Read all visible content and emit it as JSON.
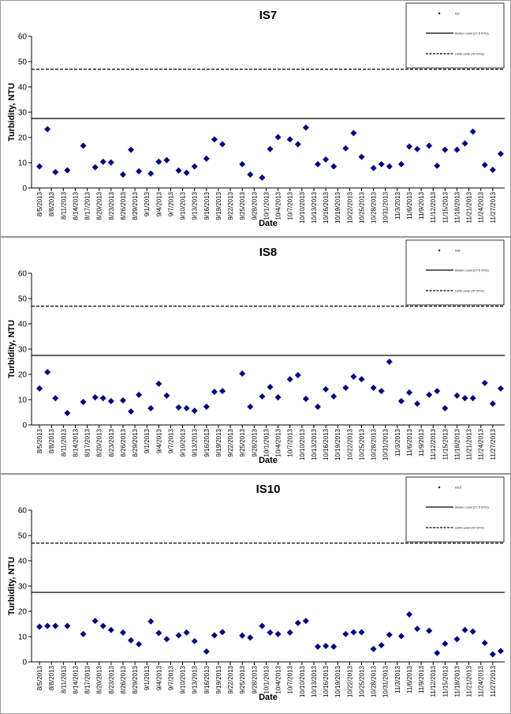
{
  "chart_data": [
    {
      "type": "scatter",
      "title": "IS7",
      "x_label": "Date",
      "y_label": "Turbidity, NTU",
      "x": [
        "8/5/2013",
        "8/7/2013",
        "8/9/2013",
        "8/12/2013",
        "8/16/2013",
        "8/19/2013",
        "8/21/2013",
        "8/23/2013",
        "8/26/2013",
        "8/28/2013",
        "8/30/2013",
        "9/2/2013",
        "9/4/2013",
        "9/6/2013",
        "9/9/2013",
        "9/11/2013",
        "9/13/2013",
        "9/16/2013",
        "9/18/2013",
        "9/20/2013",
        "9/25/2013",
        "9/27/2013",
        "9/30/2013",
        "10/2/2013",
        "10/4/2013",
        "10/7/2013",
        "10/9/2013",
        "10/11/2013",
        "10/14/2013",
        "10/16/2013",
        "10/18/2013",
        "10/21/2013",
        "10/23/2013",
        "10/25/2013",
        "10/28/2013",
        "10/30/2013",
        "11/1/2013",
        "11/4/2013",
        "11/6/2013",
        "11/8/2013",
        "11/11/2013",
        "11/13/2013",
        "11/15/2013",
        "11/18/2013",
        "11/20/2013",
        "11/22/2013",
        "11/25/2013",
        "11/27/2013",
        "11/29/2013"
      ],
      "series": [
        {
          "name": "IS7",
          "color": "#000080",
          "marker": "diamond",
          "values": [
            8.5,
            23.3,
            6.3,
            7,
            16.7,
            8.2,
            10.4,
            10.1,
            5.3,
            15.1,
            6.6,
            5.7,
            10.4,
            11,
            6.9,
            6,
            8.5,
            11.6,
            19.2,
            17.3,
            9.4,
            5.3,
            4.1,
            15.4,
            20.1,
            19.2,
            17.3,
            23.9,
            9.4,
            11.3,
            8.5,
            15.7,
            21.7,
            12.3,
            7.9,
            9.4,
            8.5,
            9.4,
            16.4,
            15.4,
            16.7,
            8.8,
            15.1,
            15.1,
            17.6,
            22.3,
            9.1,
            7.2,
            13.5
          ]
        }
      ],
      "reference_lines": [
        {
          "name": "Action Level (27.5 NTU)",
          "value": 27.5,
          "color": "#000000",
          "style": "solid"
        },
        {
          "name": "Limit Level (47 NTU)",
          "value": 47,
          "color": "#000000",
          "style": "dashed"
        }
      ],
      "xlim": [
        "8/3/2013",
        "11/30/2013"
      ],
      "xticks": [
        "8/5/2013",
        "8/8/2013",
        "8/11/2013",
        "8/14/2013",
        "8/17/2013",
        "8/20/2013",
        "8/23/2013",
        "8/26/2013",
        "8/29/2013",
        "9/1/2013",
        "9/4/2013",
        "9/7/2013",
        "9/10/2013",
        "9/13/2013",
        "9/16/2013",
        "9/19/2013",
        "9/22/2013",
        "9/25/2013",
        "9/28/2013",
        "10/1/2013",
        "10/4/2013",
        "10/7/2013",
        "10/10/2013",
        "10/13/2013",
        "10/16/2013",
        "10/19/2013",
        "10/22/2013",
        "10/25/2013",
        "10/28/2013",
        "10/31/2013",
        "11/3/2013",
        "11/6/2013",
        "11/9/2013",
        "11/12/2013",
        "11/15/2013",
        "11/18/2013",
        "11/21/2013",
        "11/24/2013",
        "11/27/2013"
      ],
      "ylim": [
        0,
        60
      ],
      "yticks": [
        0,
        10,
        20,
        30,
        40,
        50,
        60
      ],
      "grid": false,
      "legend": "top-right"
    },
    {
      "type": "scatter",
      "title": "IS8",
      "x_label": "Date",
      "y_label": "Turbidity, NTU",
      "x": [
        "8/5/2013",
        "8/7/2013",
        "8/9/2013",
        "8/12/2013",
        "8/16/2013",
        "8/19/2013",
        "8/21/2013",
        "8/23/2013",
        "8/26/2013",
        "8/28/2013",
        "8/30/2013",
        "9/2/2013",
        "9/4/2013",
        "9/6/2013",
        "9/9/2013",
        "9/11/2013",
        "9/13/2013",
        "9/16/2013",
        "9/18/2013",
        "9/20/2013",
        "9/25/2013",
        "9/27/2013",
        "9/30/2013",
        "10/2/2013",
        "10/4/2013",
        "10/7/2013",
        "10/9/2013",
        "10/11/2013",
        "10/14/2013",
        "10/16/2013",
        "10/18/2013",
        "10/21/2013",
        "10/23/2013",
        "10/25/2013",
        "10/28/2013",
        "10/30/2013",
        "11/1/2013",
        "11/4/2013",
        "11/6/2013",
        "11/8/2013",
        "11/11/2013",
        "11/13/2013",
        "11/15/2013",
        "11/18/2013",
        "11/20/2013",
        "11/22/2013",
        "11/25/2013",
        "11/27/2013",
        "11/29/2013"
      ],
      "series": [
        {
          "name": "IS8",
          "color": "#000080",
          "marker": "diamond",
          "values": [
            14.4,
            20.9,
            10.6,
            4.7,
            9.1,
            10.9,
            10.6,
            9.4,
            9.7,
            5.3,
            11.9,
            6.6,
            16.3,
            11.6,
            6.9,
            6.6,
            5.6,
            7.2,
            13.1,
            13.4,
            20.3,
            7.2,
            11.3,
            15,
            10.9,
            18.1,
            19.7,
            10.3,
            7.2,
            14.1,
            11.3,
            14.7,
            19.1,
            18.1,
            14.7,
            13.4,
            25,
            9.4,
            12.8,
            8.4,
            11.9,
            13.4,
            6.6,
            11.6,
            10.6,
            10.6,
            16.6,
            8.4,
            14.4
          ]
        }
      ],
      "reference_lines": [
        {
          "name": "Action Level (27.5 NTU)",
          "value": 27.5,
          "color": "#000000",
          "style": "solid"
        },
        {
          "name": "Limit Level (47 NTU)",
          "value": 47,
          "color": "#000000",
          "style": "dashed"
        }
      ],
      "xlim": [
        "8/3/2013",
        "11/30/2013"
      ],
      "xticks": [
        "8/5/2013",
        "8/8/2013",
        "8/11/2013",
        "8/14/2013",
        "8/17/2013",
        "8/20/2013",
        "8/23/2013",
        "8/26/2013",
        "8/29/2013",
        "9/1/2013",
        "9/4/2013",
        "9/7/2013",
        "9/10/2013",
        "9/13/2013",
        "9/16/2013",
        "9/19/2013",
        "9/22/2013",
        "9/25/2013",
        "9/28/2013",
        "10/1/2013",
        "10/4/2013",
        "10/7/2013",
        "10/10/2013",
        "10/13/2013",
        "10/16/2013",
        "10/19/2013",
        "10/22/2013",
        "10/25/2013",
        "10/28/2013",
        "10/31/2013",
        "11/3/2013",
        "11/6/2013",
        "11/9/2013",
        "11/12/2013",
        "11/15/2013",
        "11/18/2013",
        "11/21/2013",
        "11/24/2013",
        "11/27/2013"
      ],
      "ylim": [
        0,
        60
      ],
      "yticks": [
        0,
        10,
        20,
        30,
        40,
        50,
        60
      ],
      "grid": false,
      "legend": "top-right"
    },
    {
      "type": "scatter",
      "title": "IS10",
      "x_label": "Date",
      "y_label": "Turbidity, NTU",
      "x": [
        "8/5/2013",
        "8/7/2013",
        "8/9/2013",
        "8/12/2013",
        "8/16/2013",
        "8/19/2013",
        "8/21/2013",
        "8/23/2013",
        "8/26/2013",
        "8/28/2013",
        "8/30/2013",
        "9/2/2013",
        "9/4/2013",
        "9/6/2013",
        "9/9/2013",
        "9/11/2013",
        "9/13/2013",
        "9/16/2013",
        "9/18/2013",
        "9/20/2013",
        "9/25/2013",
        "9/27/2013",
        "9/30/2013",
        "10/2/2013",
        "10/4/2013",
        "10/7/2013",
        "10/9/2013",
        "10/11/2013",
        "10/14/2013",
        "10/16/2013",
        "10/18/2013",
        "10/21/2013",
        "10/23/2013",
        "10/25/2013",
        "10/28/2013",
        "10/30/2013",
        "11/1/2013",
        "11/4/2013",
        "11/6/2013",
        "11/8/2013",
        "11/11/2013",
        "11/13/2013",
        "11/15/2013",
        "11/18/2013",
        "11/20/2013",
        "11/22/2013",
        "11/25/2013",
        "11/27/2013",
        "11/29/2013"
      ],
      "series": [
        {
          "name": "IS10",
          "color": "#000080",
          "marker": "diamond",
          "values": [
            13.9,
            14.2,
            14.2,
            14.2,
            11,
            16.2,
            14.2,
            12.6,
            11.6,
            8.5,
            7,
            16,
            11.4,
            9,
            10.5,
            11.6,
            8.2,
            4.1,
            10.5,
            11.8,
            10.4,
            9.6,
            14.2,
            11.6,
            11,
            11.6,
            15.4,
            16.2,
            6,
            6.3,
            6,
            11,
            11.7,
            11.7,
            5.1,
            6.6,
            10.7,
            10.2,
            18.8,
            13.1,
            12.3,
            3.5,
            7.2,
            9,
            12.6,
            12,
            7.5,
            3,
            4.3
          ]
        }
      ],
      "reference_lines": [
        {
          "name": "Action Level (27.5 NTU)",
          "value": 27.5,
          "color": "#000000",
          "style": "solid"
        },
        {
          "name": "Limit Level (47 NTU)",
          "value": 47,
          "color": "#000000",
          "style": "dashed"
        }
      ],
      "xlim": [
        "8/3/2013",
        "11/30/2013"
      ],
      "xticks": [
        "8/5/2013",
        "8/8/2013",
        "8/11/2013",
        "8/14/2013",
        "8/17/2013",
        "8/20/2013",
        "8/23/2013",
        "8/26/2013",
        "8/29/2013",
        "9/1/2013",
        "9/4/2013",
        "9/7/2013",
        "9/10/2013",
        "9/13/2013",
        "9/16/2013",
        "9/19/2013",
        "9/22/2013",
        "9/25/2013",
        "9/28/2013",
        "10/1/2013",
        "10/4/2013",
        "10/7/2013",
        "10/10/2013",
        "10/13/2013",
        "10/16/2013",
        "10/19/2013",
        "10/22/2013",
        "10/25/2013",
        "10/28/2013",
        "10/31/2013",
        "11/3/2013",
        "11/6/2013",
        "11/9/2013",
        "11/12/2013",
        "11/15/2013",
        "11/18/2013",
        "11/21/2013",
        "11/24/2013",
        "11/27/2013"
      ],
      "ylim": [
        0,
        60
      ],
      "yticks": [
        0,
        10,
        20,
        30,
        40,
        50,
        60
      ],
      "grid": false,
      "legend": "top-right"
    }
  ]
}
